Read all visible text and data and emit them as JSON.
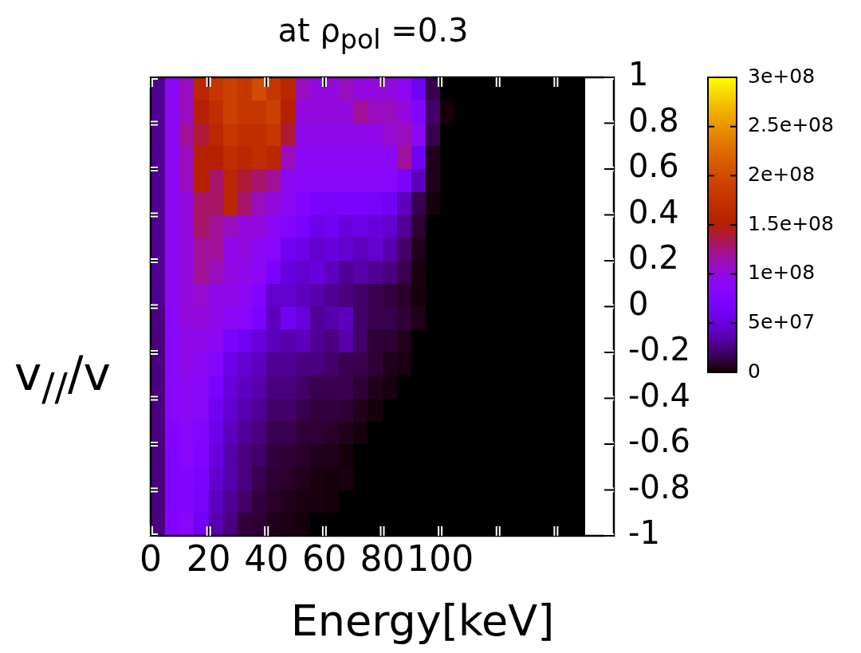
{
  "chart_data": {
    "type": "heatmap",
    "title": "at ρ$_{pol}$ =0.3",
    "xlabel": "Energy[keV]",
    "ylabel": "v$_{//}$/v",
    "x": [
      2.5,
      7.5,
      12.5,
      17.5,
      22.5,
      27.5,
      32.5,
      37.5,
      42.5,
      47.5,
      52.5,
      57.5,
      62.5,
      67.5,
      72.5,
      77.5,
      82.5,
      87.5,
      92.5,
      97.5,
      102.5,
      107.5,
      112.5,
      117.5,
      122.5,
      127.5,
      132.5,
      137.5,
      142.5,
      147.5
    ],
    "y": [
      0.95,
      0.85,
      0.75,
      0.65,
      0.55,
      0.45,
      0.35,
      0.25,
      0.15,
      0.05,
      -0.05,
      -0.15,
      -0.25,
      -0.35,
      -0.45,
      -0.55,
      -0.65,
      -0.75,
      -0.85,
      -0.95
    ],
    "cells": [
      [
        30000000.0,
        90000000.0,
        110000000.0,
        160000000.0,
        180000000.0,
        190000000.0,
        180000000.0,
        200000000.0,
        180000000.0,
        160000000.0,
        110000000.0,
        100000000.0,
        100000000.0,
        110000000.0,
        100000000.0,
        100000000.0,
        100000000.0,
        90000000.0,
        60000000.0,
        15000000.0,
        0,
        0,
        0,
        0,
        0,
        0,
        0,
        0,
        0,
        0
      ],
      [
        30000000.0,
        90000000.0,
        110000000.0,
        150000000.0,
        170000000.0,
        190000000.0,
        180000000.0,
        180000000.0,
        190000000.0,
        150000000.0,
        100000000.0,
        100000000.0,
        100000000.0,
        100000000.0,
        120000000.0,
        110000000.0,
        110000000.0,
        100000000.0,
        80000000.0,
        20000000.0,
        2000000.0,
        0,
        0,
        0,
        0,
        0,
        0,
        0,
        0,
        0
      ],
      [
        30000000.0,
        90000000.0,
        120000000.0,
        140000000.0,
        160000000.0,
        180000000.0,
        170000000.0,
        170000000.0,
        180000000.0,
        140000000.0,
        95000000.0,
        95000000.0,
        95000000.0,
        95000000.0,
        95000000.0,
        95000000.0,
        105000000.0,
        110000000.0,
        90000000.0,
        15000000.0,
        0,
        0,
        0,
        0,
        0,
        0,
        0,
        0,
        0,
        0
      ],
      [
        30000000.0,
        90000000.0,
        110000000.0,
        150000000.0,
        150000000.0,
        170000000.0,
        160000000.0,
        170000000.0,
        160000000.0,
        110000000.0,
        90000000.0,
        90000000.0,
        90000000.0,
        90000000.0,
        90000000.0,
        90000000.0,
        90000000.0,
        120000000.0,
        60000000.0,
        5000000.0,
        0,
        0,
        0,
        0,
        0,
        0,
        0,
        0,
        0,
        0
      ],
      [
        30000000.0,
        90000000.0,
        110000000.0,
        150000000.0,
        130000000.0,
        160000000.0,
        140000000.0,
        130000000.0,
        120000000.0,
        90000000.0,
        85000000.0,
        85000000.0,
        85000000.0,
        85000000.0,
        85000000.0,
        85000000.0,
        85000000.0,
        70000000.0,
        40000000.0,
        5000000.0,
        0,
        0,
        0,
        0,
        0,
        0,
        0,
        0,
        0,
        0
      ],
      [
        30000000.0,
        90000000.0,
        100000000.0,
        130000000.0,
        130000000.0,
        160000000.0,
        130000000.0,
        110000000.0,
        100000000.0,
        90000000.0,
        80000000.0,
        70000000.0,
        65000000.0,
        70000000.0,
        70000000.0,
        65000000.0,
        60000000.0,
        40000000.0,
        15000000.0,
        2000000.0,
        0,
        0,
        0,
        0,
        0,
        0,
        0,
        0,
        0,
        0
      ],
      [
        30000000.0,
        90000000.0,
        100000000.0,
        130000000.0,
        120000000.0,
        110000000.0,
        100000000.0,
        100000000.0,
        90000000.0,
        80000000.0,
        70000000.0,
        55000000.0,
        60000000.0,
        50000000.0,
        55000000.0,
        50000000.0,
        45000000.0,
        30000000.0,
        10000000.0,
        0,
        0,
        0,
        0,
        0,
        0,
        0,
        0,
        0,
        0,
        0
      ],
      [
        30000000.0,
        90000000.0,
        100000000.0,
        120000000.0,
        120000000.0,
        95000000.0,
        100000000.0,
        90000000.0,
        85000000.0,
        60000000.0,
        55000000.0,
        45000000.0,
        50000000.0,
        45000000.0,
        40000000.0,
        45000000.0,
        35000000.0,
        20000000.0,
        5000000.0,
        0,
        0,
        0,
        0,
        0,
        0,
        0,
        0,
        0,
        0,
        0
      ],
      [
        30000000.0,
        90000000.0,
        100000000.0,
        120000000.0,
        110000000.0,
        100000000.0,
        95000000.0,
        90000000.0,
        70000000.0,
        50000000.0,
        45000000.0,
        50000000.0,
        40000000.0,
        30000000.0,
        35000000.0,
        30000000.0,
        25000000.0,
        15000000.0,
        3000000.0,
        0,
        0,
        0,
        0,
        0,
        0,
        0,
        0,
        0,
        0,
        0
      ],
      [
        30000000.0,
        90000000.0,
        100000000.0,
        105000000.0,
        95000000.0,
        95000000.0,
        90000000.0,
        80000000.0,
        45000000.0,
        45000000.0,
        40000000.0,
        35000000.0,
        30000000.0,
        25000000.0,
        20000000.0,
        15000000.0,
        12000000.0,
        8000000.0,
        2000000.0,
        0,
        0,
        0,
        0,
        0,
        0,
        0,
        0,
        0,
        0,
        0
      ],
      [
        25000000.0,
        85000000.0,
        100000000.0,
        100000000.0,
        95000000.0,
        90000000.0,
        85000000.0,
        70000000.0,
        40000000.0,
        60000000.0,
        50000000.0,
        30000000.0,
        35000000.0,
        40000000.0,
        20000000.0,
        15000000.0,
        15000000.0,
        10000000.0,
        5000000.0,
        0,
        0,
        0,
        0,
        0,
        0,
        0,
        0,
        0,
        0,
        0
      ],
      [
        25000000.0,
        85000000.0,
        95000000.0,
        95000000.0,
        90000000.0,
        70000000.0,
        60000000.0,
        50000000.0,
        40000000.0,
        35000000.0,
        40000000.0,
        30000000.0,
        25000000.0,
        35000000.0,
        20000000.0,
        10000000.0,
        10000000.0,
        5000000.0,
        0,
        0,
        0,
        0,
        0,
        0,
        0,
        0,
        0,
        0,
        0,
        0
      ],
      [
        25000000.0,
        85000000.0,
        95000000.0,
        90000000.0,
        80000000.0,
        55000000.0,
        45000000.0,
        40000000.0,
        30000000.0,
        30000000.0,
        25000000.0,
        25000000.0,
        20000000.0,
        15000000.0,
        15000000.0,
        10000000.0,
        5000000.0,
        3000000.0,
        0,
        0,
        0,
        0,
        0,
        0,
        0,
        0,
        0,
        0,
        0,
        0
      ],
      [
        25000000.0,
        85000000.0,
        90000000.0,
        85000000.0,
        70000000.0,
        50000000.0,
        40000000.0,
        35000000.0,
        25000000.0,
        25000000.0,
        20000000.0,
        15000000.0,
        15000000.0,
        15000000.0,
        10000000.0,
        5000000.0,
        3000000.0,
        0,
        0,
        0,
        0,
        0,
        0,
        0,
        0,
        0,
        0,
        0,
        0,
        0
      ],
      [
        25000000.0,
        85000000.0,
        90000000.0,
        85000000.0,
        60000000.0,
        45000000.0,
        35000000.0,
        30000000.0,
        20000000.0,
        20000000.0,
        15000000.0,
        12000000.0,
        12000000.0,
        10000000.0,
        5000000.0,
        2000000.0,
        0,
        0,
        0,
        0,
        0,
        0,
        0,
        0,
        0,
        0,
        0,
        0,
        0,
        0
      ],
      [
        25000000.0,
        80000000.0,
        85000000.0,
        80000000.0,
        55000000.0,
        40000000.0,
        30000000.0,
        25000000.0,
        15000000.0,
        15000000.0,
        10000000.0,
        10000000.0,
        8000000.0,
        5000000.0,
        2000000.0,
        0,
        0,
        0,
        0,
        0,
        0,
        0,
        0,
        0,
        0,
        0,
        0,
        0,
        0,
        0
      ],
      [
        25000000.0,
        75000000.0,
        85000000.0,
        75000000.0,
        50000000.0,
        35000000.0,
        25000000.0,
        20000000.0,
        12000000.0,
        10000000.0,
        8000000.0,
        5000000.0,
        5000000.0,
        2000000.0,
        0,
        0,
        0,
        0,
        0,
        0,
        0,
        0,
        0,
        0,
        0,
        0,
        0,
        0,
        0,
        0
      ],
      [
        25000000.0,
        75000000.0,
        80000000.0,
        70000000.0,
        45000000.0,
        35000000.0,
        25000000.0,
        15000000.0,
        10000000.0,
        8000000.0,
        5000000.0,
        3000000.0,
        2000000.0,
        3000000.0,
        0,
        0,
        0,
        0,
        0,
        0,
        0,
        0,
        0,
        0,
        0,
        0,
        0,
        0,
        0,
        0
      ],
      [
        25000000.0,
        75000000.0,
        80000000.0,
        65000000.0,
        40000000.0,
        30000000.0,
        20000000.0,
        12000000.0,
        8000000.0,
        5000000.0,
        3000000.0,
        3000000.0,
        2000000.0,
        0,
        0,
        0,
        0,
        0,
        0,
        0,
        0,
        0,
        0,
        0,
        0,
        0,
        0,
        0,
        0,
        0
      ],
      [
        25000000.0,
        80000000.0,
        85000000.0,
        60000000.0,
        35000000.0,
        25000000.0,
        12000000.0,
        10000000.0,
        5000000.0,
        3000000.0,
        2000000.0,
        0,
        0,
        0,
        0,
        0,
        0,
        0,
        0,
        0,
        0,
        0,
        0,
        0,
        0,
        0,
        0,
        0,
        0,
        0
      ]
    ],
    "xlim": [
      0,
      160
    ],
    "xticks": [
      0,
      20,
      40,
      60,
      80,
      100,
      {
        "value": 120,
        "label": null
      },
      {
        "value": 140,
        "label": null
      }
    ],
    "ylim": [
      -1,
      1
    ],
    "yticks": [
      -1,
      -0.8,
      -0.6,
      -0.4,
      -0.2,
      0,
      0.2,
      0.4,
      0.6,
      0.8,
      1
    ],
    "clim": [
      0,
      300000000
    ],
    "cticks": [
      0,
      {
        "value": 50000000,
        "label": "5e+07"
      },
      {
        "value": 100000000,
        "label": "1e+08"
      },
      {
        "value": 150000000,
        "label": "1.5e+08"
      },
      {
        "value": 200000000,
        "label": "2e+08"
      },
      {
        "value": 250000000,
        "label": "2.5e+08"
      },
      {
        "value": 300000000,
        "label": "3e+08"
      }
    ]
  }
}
